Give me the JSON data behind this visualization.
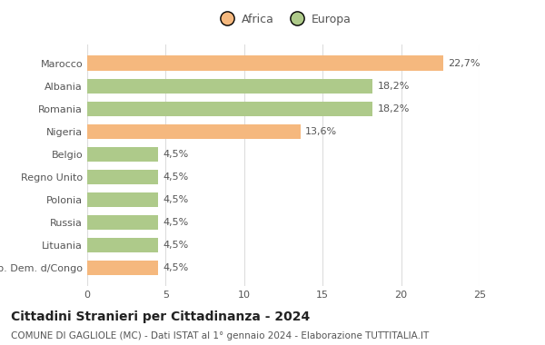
{
  "categories": [
    "Rep. Dem. d/Congo",
    "Lituania",
    "Russia",
    "Polonia",
    "Regno Unito",
    "Belgio",
    "Nigeria",
    "Romania",
    "Albania",
    "Marocco"
  ],
  "values": [
    4.5,
    4.5,
    4.5,
    4.5,
    4.5,
    4.5,
    13.6,
    18.2,
    18.2,
    22.7
  ],
  "labels": [
    "4,5%",
    "4,5%",
    "4,5%",
    "4,5%",
    "4,5%",
    "4,5%",
    "13,6%",
    "18,2%",
    "18,2%",
    "22,7%"
  ],
  "continents": [
    "Africa",
    "Europa",
    "Europa",
    "Europa",
    "Europa",
    "Europa",
    "Africa",
    "Europa",
    "Europa",
    "Africa"
  ],
  "color_africa": "#F5B87E",
  "color_europa": "#AECA8A",
  "legend_africa": "Africa",
  "legend_europa": "Europa",
  "xlim": [
    0,
    25
  ],
  "xticks": [
    0,
    5,
    10,
    15,
    20,
    25
  ],
  "title": "Cittadini Stranieri per Cittadinanza - 2024",
  "subtitle": "COMUNE DI GAGLIOLE (MC) - Dati ISTAT al 1° gennaio 2024 - Elaborazione TUTTITALIA.IT",
  "background_color": "#ffffff",
  "bar_height": 0.65,
  "grid_color": "#dddddd",
  "label_fontsize": 8,
  "tick_fontsize": 8,
  "title_fontsize": 10,
  "subtitle_fontsize": 7.5,
  "legend_fontsize": 9,
  "text_color": "#555555",
  "title_color": "#222222"
}
